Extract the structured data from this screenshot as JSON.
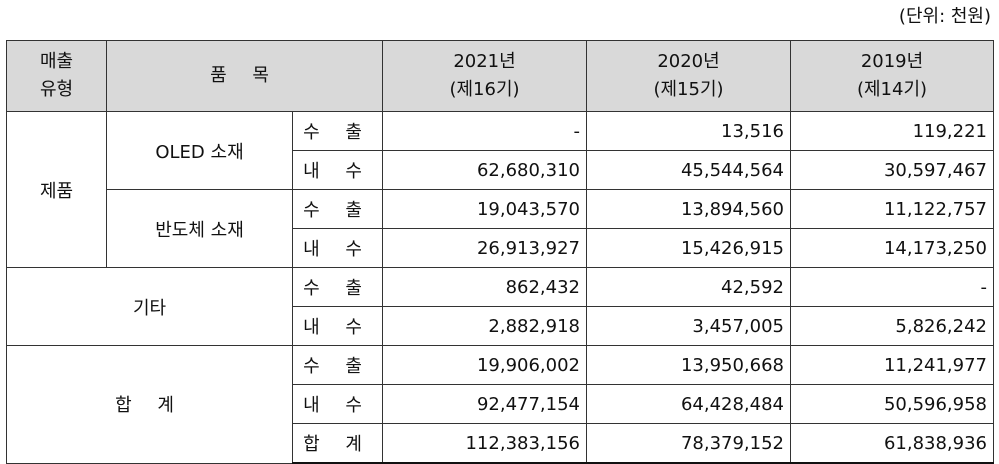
{
  "unit_label": "(단위: 천원)",
  "headers": {
    "type": [
      "매출",
      "유형"
    ],
    "item": "품 목",
    "years": [
      {
        "year": "2021년",
        "period": "(제16기)"
      },
      {
        "year": "2020년",
        "period": "(제15기)"
      },
      {
        "year": "2019년",
        "period": "(제14기)"
      }
    ]
  },
  "groups": {
    "product": "제품",
    "oled": "OLED 소재",
    "semi": "반도체 소재",
    "other": "기타",
    "total": "합 계"
  },
  "rows": [
    {
      "kind": "수 출",
      "values": [
        "-",
        "13,516",
        "119,221"
      ]
    },
    {
      "kind": "내 수",
      "values": [
        "62,680,310",
        "45,544,564",
        "30,597,467"
      ]
    },
    {
      "kind": "수 출",
      "values": [
        "19,043,570",
        "13,894,560",
        "11,122,757"
      ]
    },
    {
      "kind": "내 수",
      "values": [
        "26,913,927",
        "15,426,915",
        "14,173,250"
      ]
    },
    {
      "kind": "수 출",
      "values": [
        "862,432",
        "42,592",
        "-"
      ]
    },
    {
      "kind": "내 수",
      "values": [
        "2,882,918",
        "3,457,005",
        "5,826,242"
      ]
    },
    {
      "kind": "수 출",
      "values": [
        "19,906,002",
        "13,950,668",
        "11,241,977"
      ]
    },
    {
      "kind": "내 수",
      "values": [
        "92,477,154",
        "64,428,484",
        "50,596,958"
      ]
    },
    {
      "kind": "합 계",
      "values": [
        "112,383,156",
        "78,379,152",
        "61,838,936"
      ]
    }
  ]
}
